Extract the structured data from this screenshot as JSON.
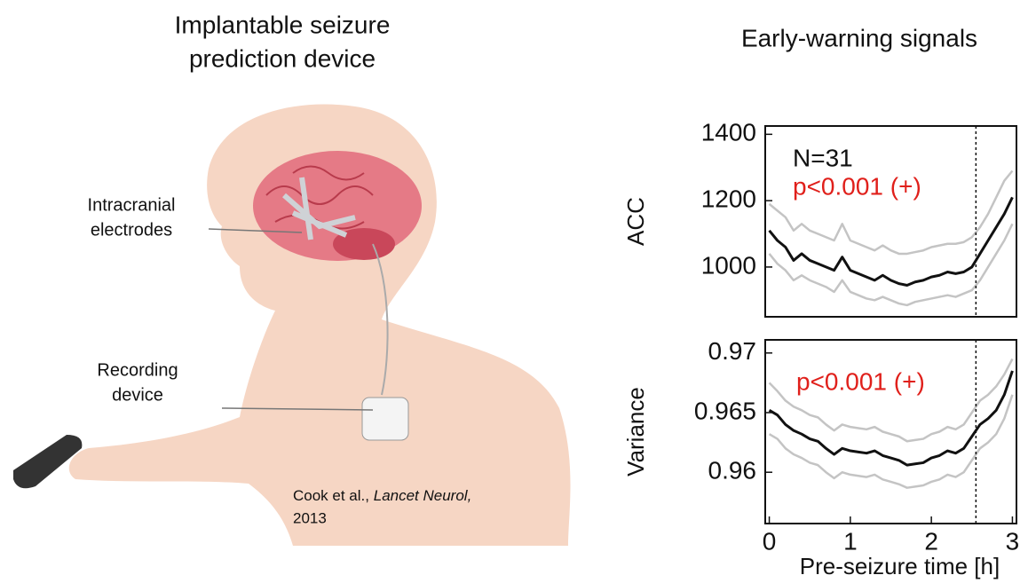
{
  "illustration": {
    "title_lines": [
      "Implantable seizure",
      "prediction device"
    ],
    "electrodes_label": [
      "Intracranial",
      "electrodes"
    ],
    "device_label": [
      "Recording",
      "device"
    ],
    "citation": {
      "authors": "Cook et al.,",
      "journal": "Lancet Neurol,",
      "year": "2013"
    }
  },
  "panel_title": "Early-warning signals",
  "chart_data": [
    {
      "type": "line",
      "ylabel": "ACC",
      "xlim": [
        -0.05,
        3.05
      ],
      "ylim": [
        850,
        1425
      ],
      "yticks": [
        1000,
        1200,
        1400
      ],
      "x": [
        0,
        0.1,
        0.2,
        0.3,
        0.4,
        0.5,
        0.6,
        0.7,
        0.8,
        0.9,
        1,
        1.1,
        1.2,
        1.3,
        1.4,
        1.5,
        1.6,
        1.7,
        1.8,
        1.9,
        2,
        2.1,
        2.2,
        2.3,
        2.4,
        2.5,
        2.6,
        2.7,
        2.8,
        2.9,
        3
      ],
      "series": [
        {
          "color": "#c4c4c4",
          "values": [
            1190,
            1170,
            1150,
            1110,
            1130,
            1110,
            1100,
            1090,
            1080,
            1130,
            1080,
            1070,
            1060,
            1050,
            1065,
            1050,
            1040,
            1040,
            1045,
            1050,
            1060,
            1065,
            1070,
            1070,
            1075,
            1090,
            1120,
            1160,
            1210,
            1260,
            1290
          ]
        },
        {
          "color": "#c4c4c4",
          "values": [
            1040,
            1010,
            990,
            960,
            975,
            960,
            950,
            940,
            925,
            960,
            925,
            915,
            905,
            900,
            910,
            900,
            890,
            885,
            895,
            900,
            905,
            910,
            915,
            910,
            920,
            930,
            960,
            1000,
            1040,
            1080,
            1130
          ]
        },
        {
          "color": "#111111",
          "values": [
            1110,
            1080,
            1060,
            1020,
            1040,
            1020,
            1010,
            1000,
            990,
            1030,
            990,
            980,
            970,
            960,
            975,
            960,
            950,
            945,
            955,
            960,
            970,
            975,
            985,
            980,
            985,
            1000,
            1040,
            1080,
            1120,
            1160,
            1210
          ]
        }
      ],
      "vline": 2.55,
      "annotations": [
        {
          "text": "N=31",
          "color": "#111111"
        },
        {
          "text": "p<0.001 (+)",
          "color": "#e0201b"
        }
      ]
    },
    {
      "type": "line",
      "ylabel": "Variance",
      "xlim": [
        -0.05,
        3.05
      ],
      "ylim": [
        0.9557,
        0.9711
      ],
      "yticks": [
        0.96,
        0.965,
        0.97
      ],
      "xticks": [
        0,
        1,
        2,
        3
      ],
      "xlabel": "Pre-seizure time [h]",
      "x": [
        0,
        0.1,
        0.2,
        0.3,
        0.4,
        0.5,
        0.6,
        0.7,
        0.8,
        0.9,
        1,
        1.1,
        1.2,
        1.3,
        1.4,
        1.5,
        1.6,
        1.7,
        1.8,
        1.9,
        2,
        2.1,
        2.2,
        2.3,
        2.4,
        2.5,
        2.6,
        2.7,
        2.8,
        2.9,
        3
      ],
      "series": [
        {
          "color": "#c4c4c4",
          "values": [
            0.9675,
            0.9668,
            0.966,
            0.9655,
            0.9652,
            0.9648,
            0.9646,
            0.964,
            0.9635,
            0.964,
            0.9638,
            0.9637,
            0.9636,
            0.9638,
            0.9634,
            0.9632,
            0.963,
            0.9626,
            0.9627,
            0.9628,
            0.9632,
            0.9634,
            0.9638,
            0.9636,
            0.964,
            0.965,
            0.966,
            0.9665,
            0.9672,
            0.9682,
            0.9695
          ]
        },
        {
          "color": "#c4c4c4",
          "values": [
            0.9632,
            0.9628,
            0.962,
            0.9615,
            0.9612,
            0.9608,
            0.9606,
            0.96,
            0.9595,
            0.96,
            0.9598,
            0.9597,
            0.9596,
            0.9598,
            0.9594,
            0.9592,
            0.959,
            0.9587,
            0.9588,
            0.9589,
            0.9592,
            0.9594,
            0.9598,
            0.9596,
            0.96,
            0.961,
            0.962,
            0.9625,
            0.9632,
            0.9645,
            0.9665
          ]
        },
        {
          "color": "#111111",
          "values": [
            0.9652,
            0.9648,
            0.964,
            0.9635,
            0.9632,
            0.9628,
            0.9626,
            0.962,
            0.9615,
            0.962,
            0.9618,
            0.9617,
            0.9616,
            0.9618,
            0.9614,
            0.9612,
            0.961,
            0.9606,
            0.9607,
            0.9608,
            0.9612,
            0.9614,
            0.9618,
            0.9616,
            0.962,
            0.963,
            0.964,
            0.9645,
            0.9652,
            0.9665,
            0.9685
          ]
        }
      ],
      "vline": 2.55,
      "annotations": [
        {
          "text": "p<0.001 (+)",
          "color": "#e0201b"
        }
      ]
    }
  ]
}
